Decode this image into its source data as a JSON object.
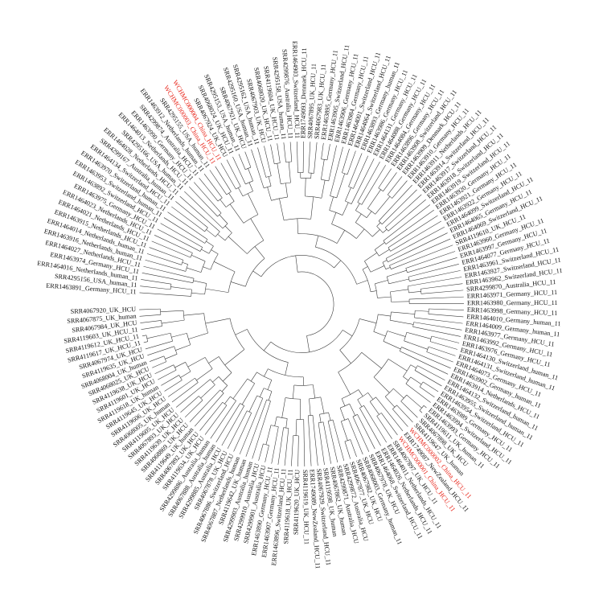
{
  "figure": {
    "type": "circular phylogenetic tree",
    "highlight_color": "#e8261b",
    "label_color": "#111111",
    "branch_color": "#3a3a3a",
    "highlighted_labels": [
      "WCHMC000003_China_HCU_11",
      "WCHMC000004_China_HCU_11",
      "WCHMC000001_China_HCU_11",
      "WCHMC000002_China_HCU_11"
    ]
  },
  "tips": [
    "ERR1463891_Germany_HCU_11",
    "SRR4295156_USA_human_11",
    "ERR1464016_Netherlands_human_11",
    "ERR1463974_Germany_HCU_11",
    "ERR1464027_Netherlands_HCU_11",
    "ERR1463916_Netherlands_human_11",
    "ERR1464014_Netherlands_human_11",
    "ERR1463915_Netherlands_HCU_11",
    "ERR1464021_Netherlands_HCU_11",
    "ERR1464023_Netherlands_HCU_11",
    "ERR1463975_Germany_HCU_11",
    "ERR1463892_Switzerland_HCU_11",
    "ERR1463953_Switzerland_human_11",
    "ERR1463970_Switzerland_human_11",
    "ERR1464134_Switzerland_HCU_11",
    "SRR4299167_Australia_human_11",
    "ERR1464028_Netherlands_HCU_11",
    "SRR4295166_USA_human_11",
    "ERR1464013_Netherlands_HCU_11",
    "ERR1463990_Germany_HCU_11",
    "SRR4299874_Australia_HCU_11",
    "ERR1463912_Netherlands_human_11",
    "SRR4295155_USA_human_11",
    "WCHMC000003_China_HCU_11",
    "WCHMC000004_China_HCU_11",
    "SRR4067924_UK_HCU",
    "SRR4068024_UK_HCU_11",
    "SRR4295153_USA_human_11",
    "SRR4067921_UK_HCU",
    "SRR4295160_USA_human_11",
    "SRR4295162_USA_human_11",
    "SRR4067903_UK_HCU",
    "SRR4068020_UK_HCU_11",
    "SRR4119604_UK_HCU_11",
    "SRR4295158_USA_human_11",
    "SRR4299876_Australia_HCU_11",
    "ERR1464903_Switzerland_HCU_11",
    "ERR1749093_Denmark_HCU_11",
    "SRR4067895_UK_HCU_11",
    "SRR4067983_UK_HCU_11",
    "ERR1463895_Germany_HCU_11",
    "ERR1463905_Switzerland_HCU_11",
    "ERR1463906_Germany_HCU_11",
    "ERR1463984_Germany_HCU_11",
    "ERR1464001_Switzerland_HCU_11",
    "ERR1464064_Switzerland_HCU_11",
    "ERR1463893_Germany_human_11",
    "ERR1463986_Germany_HCU_11",
    "ERR1464131_Germany_HCU_11",
    "ERR1464088_Germany_HCU_11",
    "ERR1464084_Germany_HCU_11",
    "ERR1463896_Germany_HCU_11",
    "ERR1463908_Switzerland_HCU_11",
    "ERR1463909_Denmark_HCU_11",
    "ERR1463910_Germany_HCU_11",
    "ERR1463911_Netherlands_HCU_11",
    "ERR1463914_Switzerland_HCU_11",
    "ERR1463917_Switzerland_HCU_11",
    "ERR1463918_Switzerland_HCU_11",
    "ERR1463919_Switzerland_HCU_11",
    "ERR1463920_Germany_HCU_11",
    "ERR1463921_Germany_HCU_11",
    "ERR1463922_Germany_HCU_11",
    "ERR1464099_Switzerland_HCU_11",
    "ERR1464065_Germany_HCU_11",
    "ERR1464069_Switzerland_HCU_11",
    "SRR4119610_UK_HCU_11",
    "ERR1463960_Germany_HCU_11",
    "ERR1463997_Germany_HCU_11",
    "ERR1464077_Germany_HCU_11",
    "ERR1463961_Switzerland_HCU_11",
    "ERR1463927_Switzerland_HCU_11",
    "ERR1463962_Switzerland_HCU_11",
    "SRR4299870_Australia_HCU_11",
    "ERR1463971_Germany_HCU_11",
    "ERR1463980_Germany_HCU_11",
    "ERR1463998_Germany_HCU_11",
    "ERR1464010_Germany_human_11",
    "ERR1464009_Germany_human_11",
    "ERR1463977_Germany_HCU_11",
    "ERR1463992_Germany_HCU_11",
    "ERR1463976_Germany_HCU_11",
    "ERR1464130_Switzerland_human_11",
    "ERR1464131_Switzerland_human_11",
    "ERR1464073_Germany_HCU_11",
    "ERR1463902_Germany_human_11",
    "ERR1463914_Netherlands_HCU_11",
    "ERR1464132_Switzerland_human_11",
    "ERR1463955_Switzerland_human_11",
    "ERR1463954_Switzerland_HCU_11",
    "ERR1463989_Germany_HCU_11",
    "ERR1463994_Switzerland_HCU_11",
    "ERR1463993_Germany_HCU_11",
    "SRR4119611_UK_human_11",
    "SRR4067898_UK_HCU",
    "SRR4119647_UK_human",
    "WCHMC000002_China_HCU_11",
    "ERR1749087_NewZealand_HCU_11",
    "WCHMC000001_China_HCU_11",
    "SRR4067897_UK_HCU_11",
    "ERR1464011_Netherlands_HCU_11",
    "ERR1464026_Netherlands_HCU_11",
    "ERR1464068_Switzerland_HCU_11",
    "SRR4067978_UK_HCU",
    "SRR4068003_Germany_human_11",
    "SRR4067982_UK_HCU",
    "SRR4067877_UK_HCU",
    "SRR4299872_Australia_HCU",
    "SRR4299871_Australia_HCU",
    "SRR4067862_UK_human",
    "SRR4119598_UK_human",
    "SRR4067929_Switzerland_HCU_11",
    "ERR1749089_NewZealand_HCU_11",
    "SRR4119619_UK_HCU_11",
    "SRR4119620_UK_HCU",
    "SRR4119618_UK_HCU_11",
    "ERR1463896_Switzerland_HCU_11",
    "ERR1463907_Germany_HCU_11",
    "ERR1463890_Germany_HCU_11",
    "SRR4299901_Australia_HCU",
    "SRR4299910_Australia_HCU",
    "SRR4299903_Australia_human",
    "SRR4119642_UK_human",
    "SRR4067887_Netherlands_human",
    "SRR4067886_Switzerland_HCU",
    "SRR4067878_UK_HCU",
    "SRR4299885_Australia_HCU",
    "SRR4067888_Australia_human",
    "SRR4299886_Australia_human",
    "SRR4119634_UK_HCU",
    "SRR4067892_UK_HCU",
    "SRR4119649_UK_human",
    "SRR4068869_UK_HCU",
    "SRR4119639_UK_HCU",
    "SRR4067893_UK_HCU",
    "SRR4119605_UK_HCU",
    "SRR4068005_UK_human",
    "SRR4119606_UK_HCU",
    "SRR4119645_UK_HCU",
    "SRR4119618_UK_human",
    "SRR4119601_UK_HCU",
    "SRR4119638_UK_HCU",
    "SRR4068025_UK_HCU",
    "SRR4068004_UK_human",
    "SRR4119635_UK_HCU",
    "SRR4067974_UK_HCU",
    "SRR4119617_UK_HCU_11",
    "SRR4119612_UK_HCU_11",
    "SRR4119603_UK_HCU_11",
    "SRR4067984_UK_HCU",
    "SRR4067875_UK_human",
    "SRR4067920_UK_HCU"
  ]
}
